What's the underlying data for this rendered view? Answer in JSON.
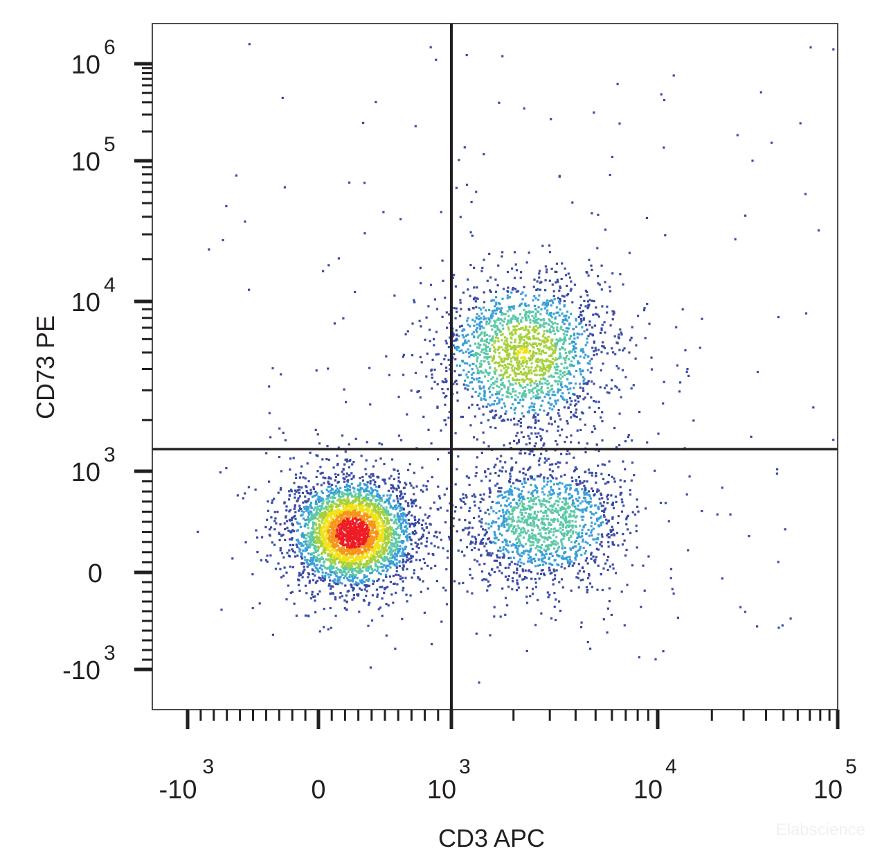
{
  "chart_data": {
    "type": "scatter",
    "title": "",
    "xlabel": "CD3 APC",
    "ylabel": "CD73 PE",
    "x_scale": "biexponential",
    "y_scale": "biexponential",
    "xlim": [
      -1300,
      100000
    ],
    "ylim": [
      -1500,
      1500000
    ],
    "x_ticks": [
      {
        "base": "-10",
        "exp": "3",
        "value": -1000
      },
      {
        "base": "0",
        "exp": "",
        "value": 0
      },
      {
        "base": "10",
        "exp": "3",
        "value": 1000
      },
      {
        "base": "10",
        "exp": "4",
        "value": 10000
      },
      {
        "base": "10",
        "exp": "5",
        "value": 100000
      }
    ],
    "y_ticks": [
      {
        "base": "-10",
        "exp": "3",
        "value": -1000
      },
      {
        "base": "0",
        "exp": "",
        "value": 0
      },
      {
        "base": "10",
        "exp": "3",
        "value": 1000
      },
      {
        "base": "10",
        "exp": "4",
        "value": 10000
      },
      {
        "base": "10",
        "exp": "5",
        "value": 100000
      },
      {
        "base": "10",
        "exp": "6",
        "value": 1000000
      }
    ],
    "quadrant_gates": {
      "x": 1000,
      "y": 1350
    },
    "density_colormap": [
      "#3b4ba5",
      "#3aa0d6",
      "#5cc8a8",
      "#a6d13c",
      "#f1e21a",
      "#f7941d",
      "#ed1c24"
    ],
    "populations": [
      {
        "center_x": 250,
        "center_y": 400,
        "spread_x": 0.42,
        "spread_y": 0.38,
        "relative_density": 1.0
      },
      {
        "center_x": 2200,
        "center_y": 5000,
        "spread_x": 0.6,
        "spread_y": 0.55,
        "relative_density": 0.55
      },
      {
        "center_x": 2800,
        "center_y": 500,
        "spread_x": 0.6,
        "spread_y": 0.45,
        "relative_density": 0.4
      }
    ],
    "grid": false,
    "legend": "none"
  },
  "watermark": "Elabscience"
}
